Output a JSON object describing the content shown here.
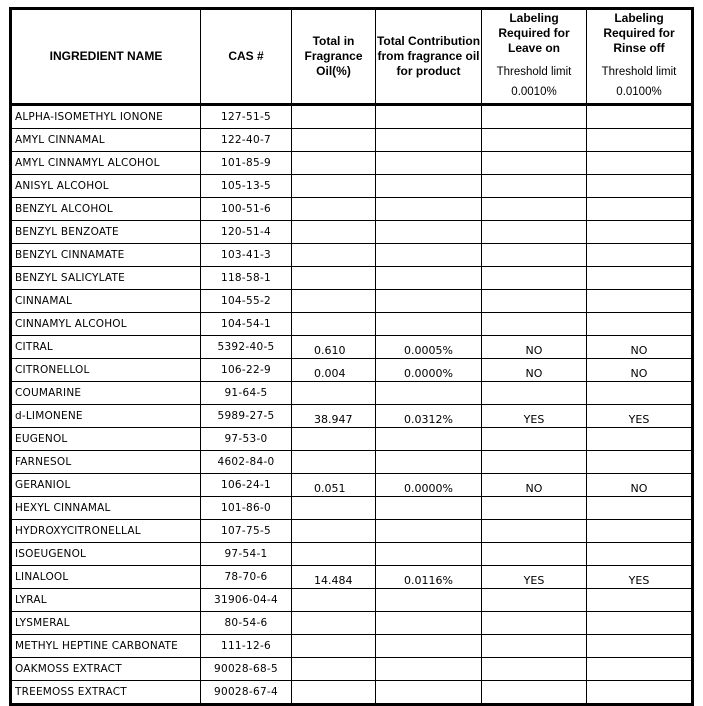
{
  "headers": {
    "name": "INGREDIENT NAME",
    "cas": "CAS #",
    "total": "Total in Fragrance Oil(%)",
    "contribution": "Total Contribution from fragrance oil for product",
    "leave_on": "Labeling Required for Leave on",
    "leave_on_sub": "Threshold limit",
    "leave_on_limit": "0.0010%",
    "rinse_off": "Labeling Required for Rinse off",
    "rinse_off_sub": "Threshold limit",
    "rinse_off_limit": "0.0100%"
  },
  "rows": [
    {
      "name": "ALPHA-ISOMETHYL IONONE",
      "cas": "127-51-5",
      "total": "",
      "contribution": "",
      "leave_on": "",
      "rinse_off": ""
    },
    {
      "name": "AMYL CINNAMAL",
      "cas": "122-40-7",
      "total": "",
      "contribution": "",
      "leave_on": "",
      "rinse_off": ""
    },
    {
      "name": "AMYL CINNAMYL ALCOHOL",
      "cas": "101-85-9",
      "total": "",
      "contribution": "",
      "leave_on": "",
      "rinse_off": ""
    },
    {
      "name": "ANISYL ALCOHOL",
      "cas": "105-13-5",
      "total": "",
      "contribution": "",
      "leave_on": "",
      "rinse_off": ""
    },
    {
      "name": "BENZYL ALCOHOL",
      "cas": "100-51-6",
      "total": "",
      "contribution": "",
      "leave_on": "",
      "rinse_off": ""
    },
    {
      "name": "BENZYL BENZOATE",
      "cas": "120-51-4",
      "total": "",
      "contribution": "",
      "leave_on": "",
      "rinse_off": ""
    },
    {
      "name": "BENZYL CINNAMATE",
      "cas": "103-41-3",
      "total": "",
      "contribution": "",
      "leave_on": "",
      "rinse_off": ""
    },
    {
      "name": "BENZYL SALICYLATE",
      "cas": "118-58-1",
      "total": "",
      "contribution": "",
      "leave_on": "",
      "rinse_off": ""
    },
    {
      "name": "CINNAMAL",
      "cas": "104-55-2",
      "total": "",
      "contribution": "",
      "leave_on": "",
      "rinse_off": ""
    },
    {
      "name": "CINNAMYL ALCOHOL",
      "cas": "104-54-1",
      "total": "",
      "contribution": "",
      "leave_on": "",
      "rinse_off": ""
    },
    {
      "name": "CITRAL",
      "cas": "5392-40-5",
      "total": "0.610",
      "contribution": "0.0005%",
      "leave_on": "NO",
      "rinse_off": "NO"
    },
    {
      "name": "CITRONELLOL",
      "cas": "106-22-9",
      "total": "0.004",
      "contribution": "0.0000%",
      "leave_on": "NO",
      "rinse_off": "NO"
    },
    {
      "name": "COUMARINE",
      "cas": "91-64-5",
      "total": "",
      "contribution": "",
      "leave_on": "",
      "rinse_off": ""
    },
    {
      "name": "d-LIMONENE",
      "cas": "5989-27-5",
      "total": "38.947",
      "contribution": "0.0312%",
      "leave_on": "YES",
      "rinse_off": "YES"
    },
    {
      "name": "EUGENOL",
      "cas": "97-53-0",
      "total": "",
      "contribution": "",
      "leave_on": "",
      "rinse_off": ""
    },
    {
      "name": "FARNESOL",
      "cas": "4602-84-0",
      "total": "",
      "contribution": "",
      "leave_on": "",
      "rinse_off": ""
    },
    {
      "name": "GERANIOL",
      "cas": "106-24-1",
      "total": "0.051",
      "contribution": "0.0000%",
      "leave_on": "NO",
      "rinse_off": "NO"
    },
    {
      "name": "HEXYL CINNAMAL",
      "cas": "101-86-0",
      "total": "",
      "contribution": "",
      "leave_on": "",
      "rinse_off": ""
    },
    {
      "name": "HYDROXYCITRONELLAL",
      "cas": "107-75-5",
      "total": "",
      "contribution": "",
      "leave_on": "",
      "rinse_off": ""
    },
    {
      "name": "ISOEUGENOL",
      "cas": "97-54-1",
      "total": "",
      "contribution": "",
      "leave_on": "",
      "rinse_off": ""
    },
    {
      "name": "LINALOOL",
      "cas": "78-70-6",
      "total": "14.484",
      "contribution": "0.0116%",
      "leave_on": "YES",
      "rinse_off": "YES"
    },
    {
      "name": "LYRAL",
      "cas": "31906-04-4",
      "total": "",
      "contribution": "",
      "leave_on": "",
      "rinse_off": ""
    },
    {
      "name": "LYSMERAL",
      "cas": "80-54-6",
      "total": "",
      "contribution": "",
      "leave_on": "",
      "rinse_off": ""
    },
    {
      "name": "METHYL HEPTINE CARBONATE",
      "cas": "111-12-6",
      "total": "",
      "contribution": "",
      "leave_on": "",
      "rinse_off": ""
    },
    {
      "name": "OAKMOSS EXTRACT",
      "cas": "90028-68-5",
      "total": "",
      "contribution": "",
      "leave_on": "",
      "rinse_off": ""
    },
    {
      "name": "TREEMOSS EXTRACT",
      "cas": "90028-67-4",
      "total": "",
      "contribution": "",
      "leave_on": "",
      "rinse_off": ""
    }
  ]
}
